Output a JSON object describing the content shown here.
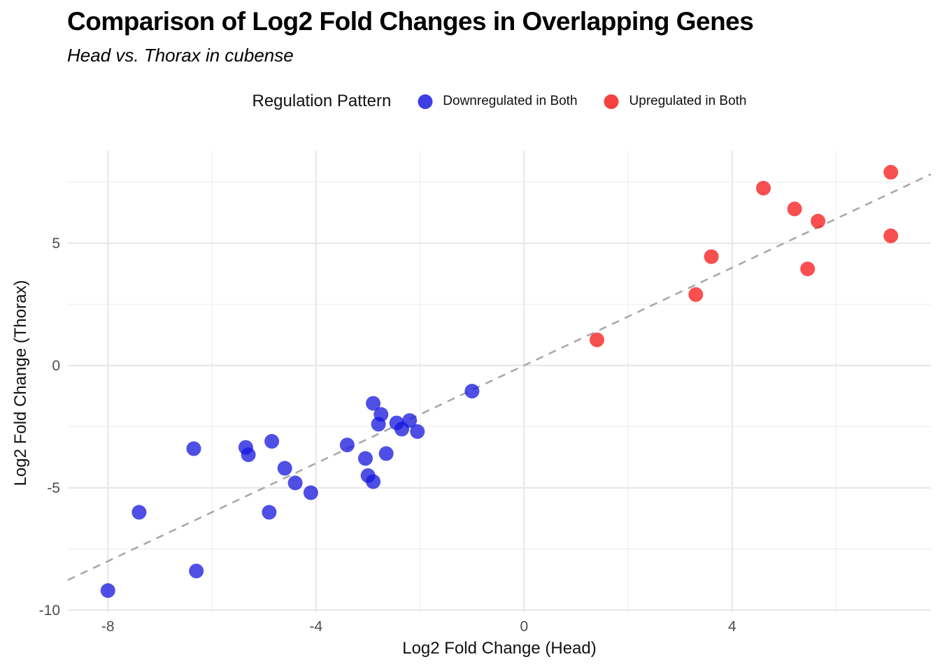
{
  "title": "Comparison of Log2 Fold Changes in Overlapping Genes",
  "subtitle": "Head vs. Thorax in cubense",
  "legend": {
    "title": "Regulation Pattern",
    "position": "top-center",
    "items": [
      {
        "label": "Downregulated in Both",
        "color": "#1414dd"
      },
      {
        "label": "Upregulated in Both",
        "color": "#f51616"
      }
    ]
  },
  "chart_data": {
    "type": "scatter",
    "title": "Comparison of Log2 Fold Changes in Overlapping Genes",
    "subtitle": "Head vs. Thorax in cubense",
    "xlabel": "Log2 Fold Change (Head)",
    "ylabel": "Log2 Fold Change (Thorax)",
    "xlim": [
      -8.77,
      7.82
    ],
    "ylim": [
      -10.09,
      8.77
    ],
    "x_major_ticks": [
      -8,
      -4,
      0,
      4
    ],
    "x_minor_ticks": [
      -6,
      -2,
      2,
      6
    ],
    "y_major_ticks": [
      5,
      0,
      -5,
      -10
    ],
    "y_minor_ticks": [
      7.5,
      2.5,
      -2.5,
      -7.5
    ],
    "grid": "on",
    "reference_line": {
      "type": "identity y=x",
      "style": "dashed",
      "color": "#a9a9a9"
    },
    "point_opacity": 0.75,
    "series": [
      {
        "name": "Downregulated in Both",
        "color": "#1414dd",
        "points": [
          [
            -8.0,
            -9.2
          ],
          [
            -7.4,
            -6.0
          ],
          [
            -6.3,
            -8.4
          ],
          [
            -6.35,
            -3.4
          ],
          [
            -5.35,
            -3.35
          ],
          [
            -5.3,
            -3.65
          ],
          [
            -4.9,
            -6.0
          ],
          [
            -4.85,
            -3.1
          ],
          [
            -4.6,
            -4.2
          ],
          [
            -4.4,
            -4.8
          ],
          [
            -4.1,
            -5.2
          ],
          [
            -3.4,
            -3.25
          ],
          [
            -3.05,
            -3.8
          ],
          [
            -3.0,
            -4.5
          ],
          [
            -2.9,
            -4.75
          ],
          [
            -2.9,
            -1.55
          ],
          [
            -2.8,
            -2.4
          ],
          [
            -2.75,
            -2.0
          ],
          [
            -2.65,
            -3.6
          ],
          [
            -2.45,
            -2.35
          ],
          [
            -2.35,
            -2.6
          ],
          [
            -2.2,
            -2.25
          ],
          [
            -2.05,
            -2.7
          ],
          [
            -1.0,
            -1.05
          ]
        ]
      },
      {
        "name": "Upregulated in Both",
        "color": "#f51616",
        "points": [
          [
            1.4,
            1.05
          ],
          [
            3.3,
            2.9
          ],
          [
            3.6,
            4.45
          ],
          [
            4.6,
            7.25
          ],
          [
            5.2,
            6.4
          ],
          [
            5.45,
            3.95
          ],
          [
            5.65,
            5.9
          ],
          [
            7.05,
            7.9
          ],
          [
            7.05,
            5.3
          ]
        ]
      }
    ]
  }
}
